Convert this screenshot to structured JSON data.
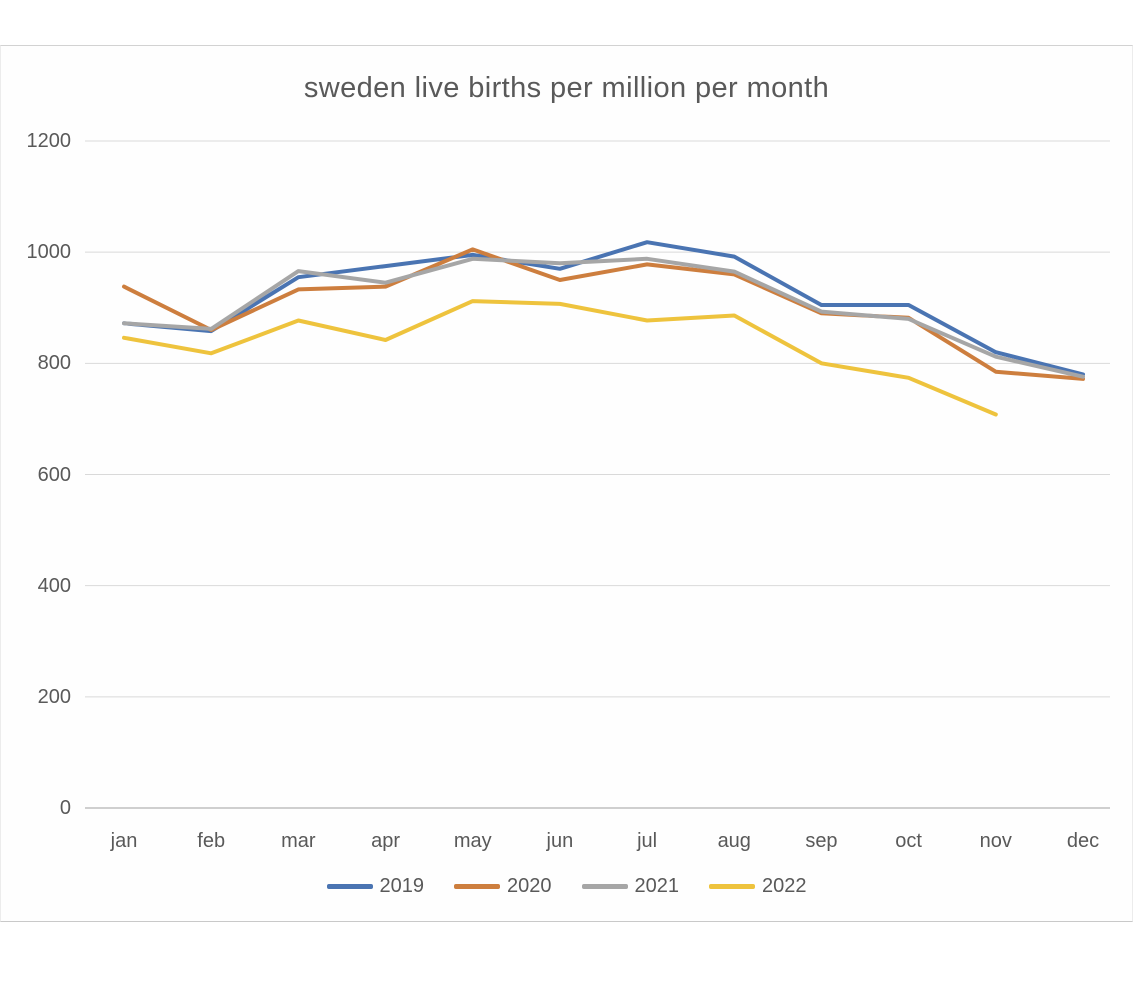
{
  "chart_data": {
    "type": "line",
    "title": "sweden live births per million per month",
    "xlabel": "",
    "ylabel": "",
    "categories": [
      "jan",
      "feb",
      "mar",
      "apr",
      "may",
      "jun",
      "jul",
      "aug",
      "sep",
      "oct",
      "nov",
      "dec"
    ],
    "series": [
      {
        "name": "2019",
        "color": "#4a74b2",
        "values": [
          872,
          858,
          955,
          975,
          995,
          970,
          1018,
          992,
          905,
          905,
          820,
          780
        ]
      },
      {
        "name": "2020",
        "color": "#cd7e3e",
        "values": [
          938,
          860,
          933,
          938,
          1005,
          950,
          978,
          960,
          890,
          882,
          785,
          772
        ]
      },
      {
        "name": "2021",
        "color": "#a6a6a6",
        "values": [
          872,
          862,
          966,
          945,
          988,
          980,
          988,
          965,
          893,
          880,
          812,
          776
        ]
      },
      {
        "name": "2022",
        "color": "#eec33d",
        "values": [
          846,
          818,
          877,
          842,
          912,
          907,
          877,
          886,
          800,
          774,
          708,
          null
        ]
      }
    ],
    "ylim": [
      0,
      1200
    ],
    "yticks": [
      0,
      200,
      400,
      600,
      800,
      1000,
      1200
    ],
    "grid": true,
    "legend_position": "bottom",
    "colors": {
      "gridline": "#d9d9d9",
      "axis_line": "#bfbfbf",
      "label_text": "#595959",
      "title_text": "#595959"
    }
  }
}
